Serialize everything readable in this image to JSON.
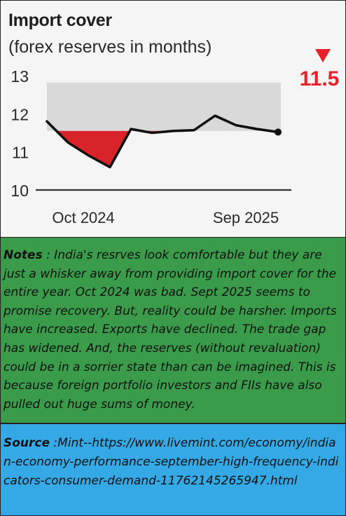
{
  "chart_data": {
    "type": "line",
    "title": "Import cover",
    "subtitle": "(forex reserves in months)",
    "x_tick_labels": [
      "Oct 2024",
      "Sep 2025"
    ],
    "y_ticks": [
      10,
      11,
      12,
      13
    ],
    "ylim": [
      10,
      13
    ],
    "series": [
      {
        "values": [
          11.8,
          11.25,
          10.9,
          10.6,
          11.6,
          11.5,
          11.55,
          11.57,
          11.95,
          11.7,
          11.6,
          11.52
        ]
      }
    ],
    "comfort_band": [
      11.55,
      12.82
    ],
    "latest_value": "11.5",
    "colors": {
      "line": "#111111",
      "below_band_fill": "#d9232a",
      "band": "#d9d9d9",
      "latest_marker": "#e8202a",
      "axis": "#333333"
    }
  },
  "notes": {
    "label": "Notes",
    "text": " : India's resrves look comfortable but they are just a whisker away from providing import cover for the entire year. Oct 2024 was bad. Sept 2025 seems to promise recovery. But, reality could be harsher. Imports have increased. Exports have declined. The trade gap has widened. And, the reserves (without revaluation) could be in a sorrier state than can be imagined. This is because foreign portfolio investors and FIIs have also pulled out huge sums of money."
  },
  "source": {
    "label": "Source",
    "text": " :Mint--https://www.livemint.com/economy/indian-economy-performance-september-high-frequency-indicators-consumer-demand-11762145265947.html"
  }
}
